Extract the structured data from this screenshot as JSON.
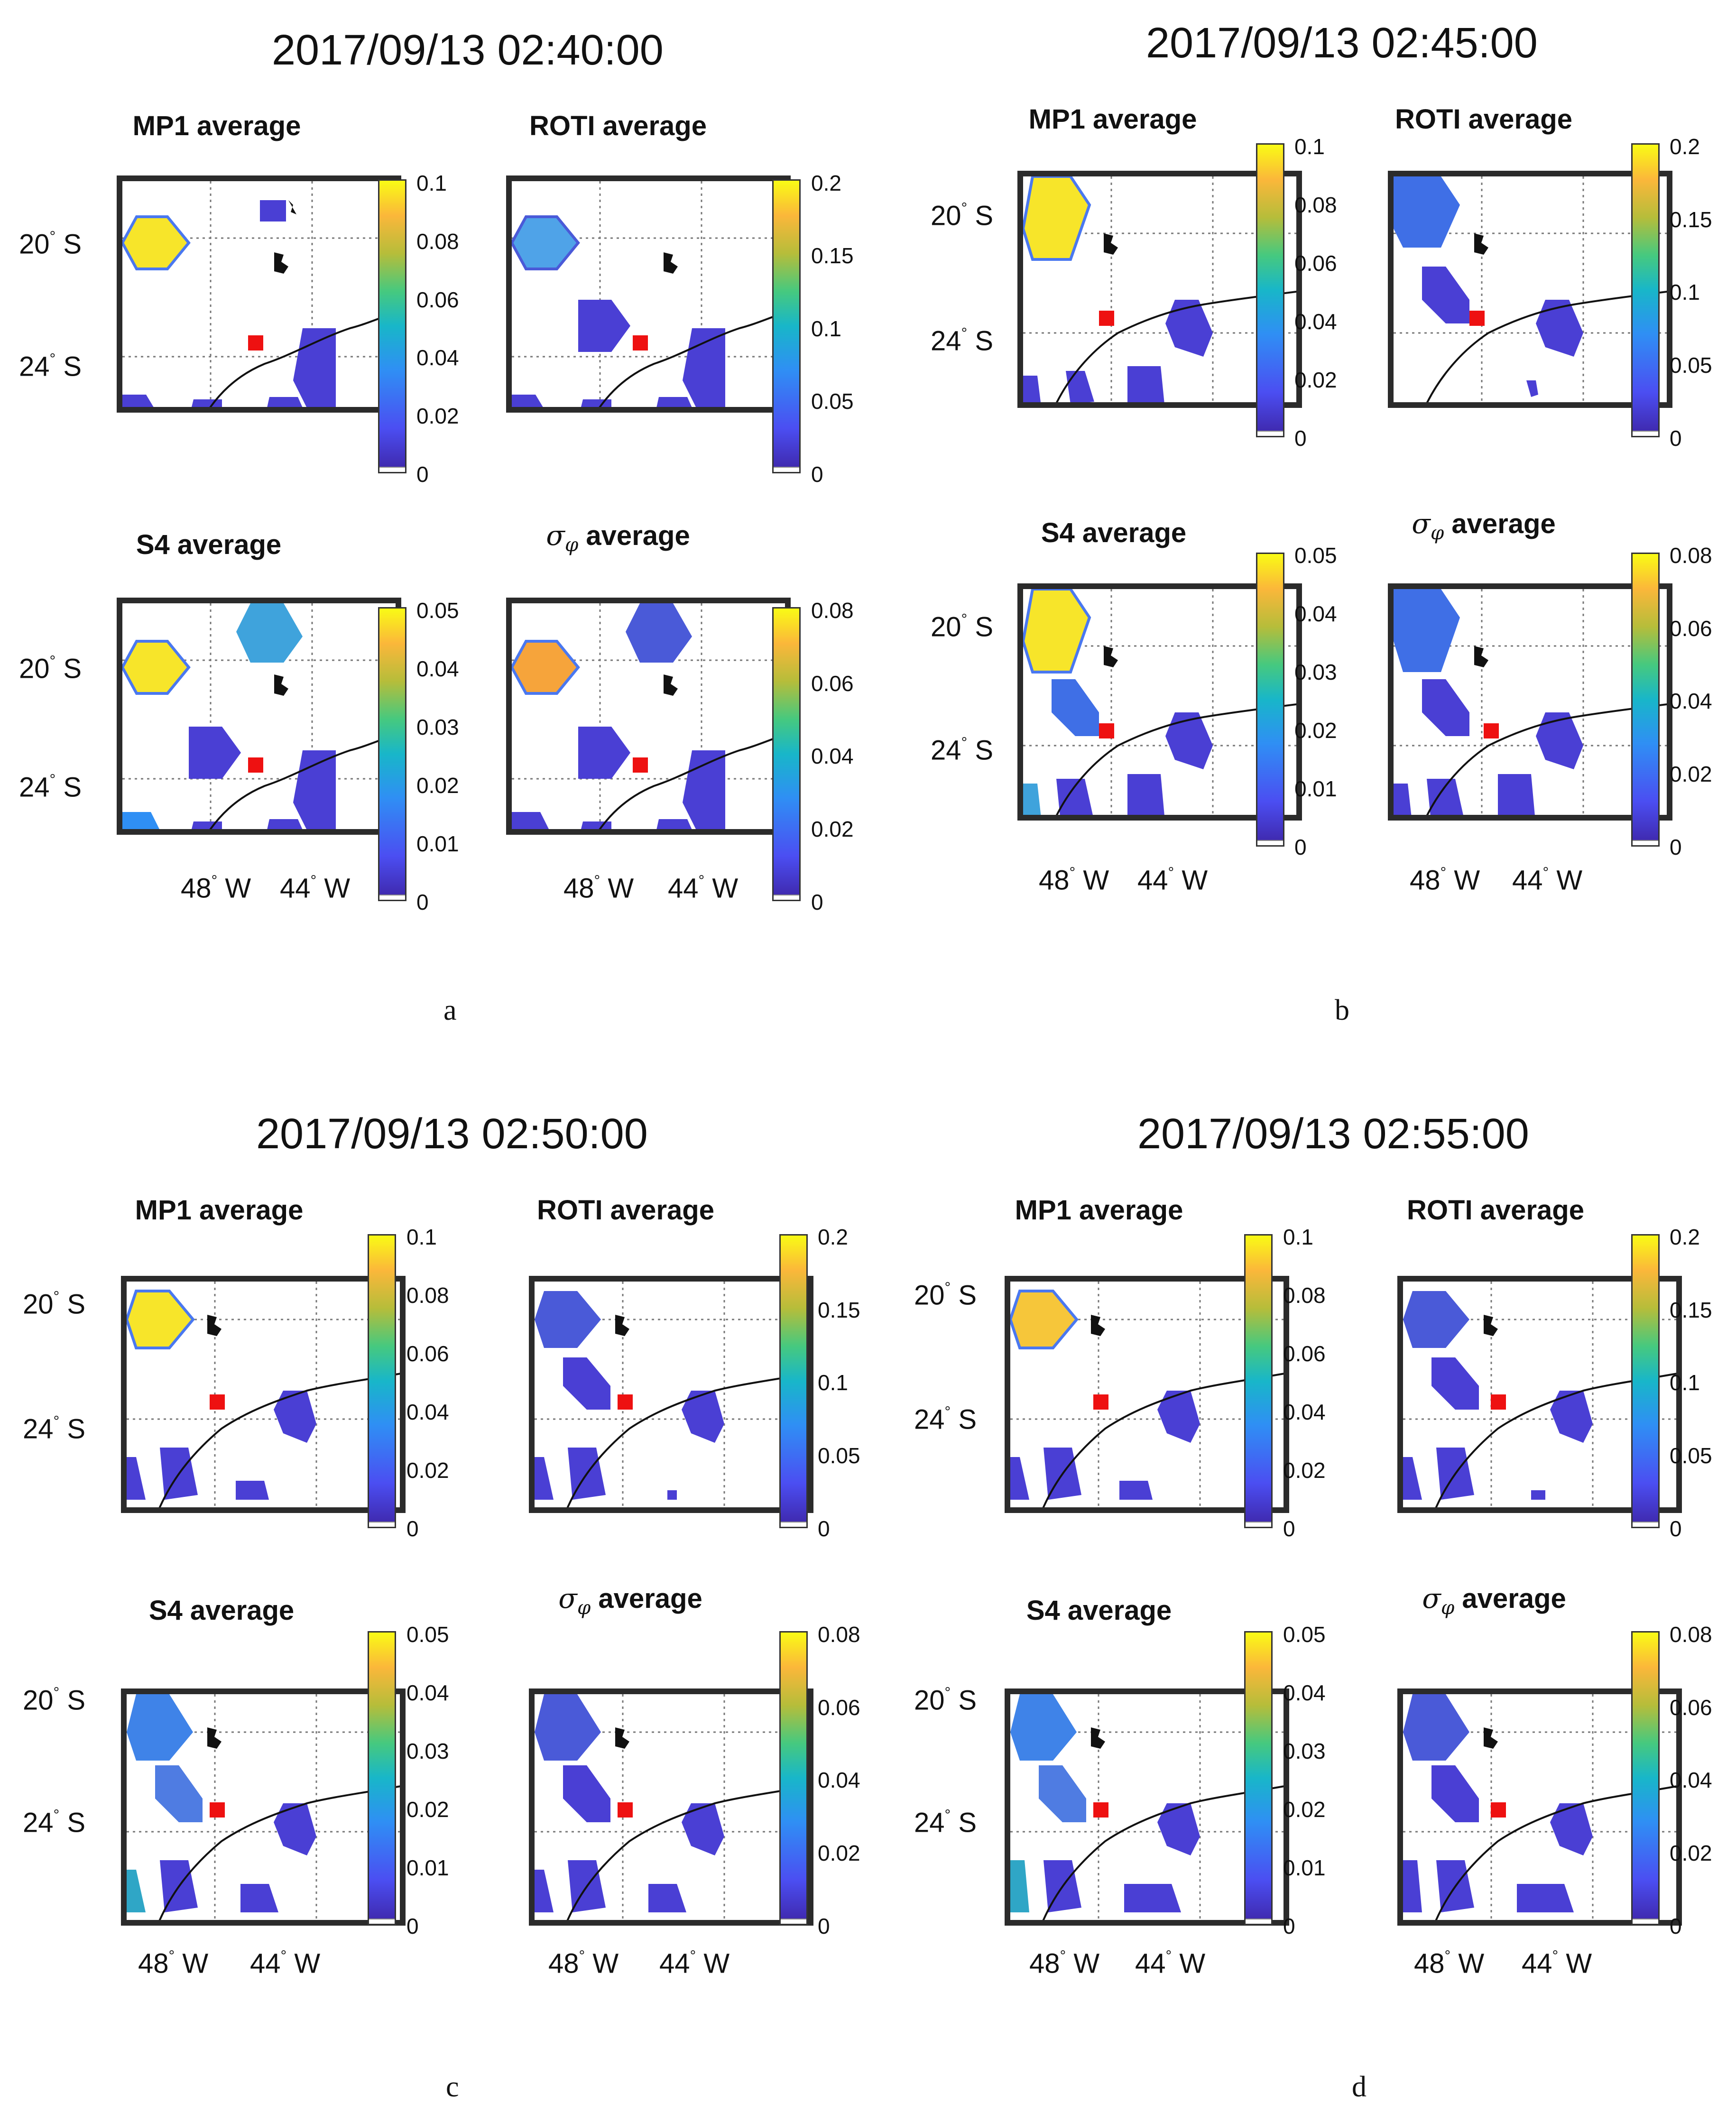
{
  "groups": [
    {
      "title": "2017/09/13 02:40:00",
      "caption": "a"
    },
    {
      "title": "2017/09/13 02:45:00",
      "caption": "b"
    },
    {
      "title": "2017/09/13 02:50:00",
      "caption": "c"
    },
    {
      "title": "2017/09/13 02:55:00",
      "caption": "d"
    }
  ],
  "panels": {
    "mp1": {
      "title": "MP1 average",
      "ticks": [
        "0.1",
        "0.08",
        "0.06",
        "0.04",
        "0.02",
        "0"
      ]
    },
    "roti": {
      "title": "ROTI average",
      "ticks": [
        "0.2",
        "0.15",
        "0.1",
        "0.05",
        "0"
      ]
    },
    "s4": {
      "title": "S4 average",
      "ticks": [
        "0.05",
        "0.04",
        "0.03",
        "0.02",
        "0.01",
        "0"
      ]
    },
    "sigma": {
      "title_symbol": "σ",
      "title_sub": "φ",
      "title_text": "average",
      "ticks": [
        "0.08",
        "0.06",
        "0.04",
        "0.02",
        "0"
      ]
    }
  },
  "axes": {
    "lat_20": "20",
    "lat_24": "24",
    "lat_hemi": "S",
    "lon_48": "48",
    "lon_44": "44",
    "lon_hemi": "W",
    "degree_symbol": "°"
  },
  "colors": {
    "station_marker": "#ee1111",
    "low": "#3e26a8",
    "high": "#f9fb15",
    "border": "#2b2b2b"
  }
}
